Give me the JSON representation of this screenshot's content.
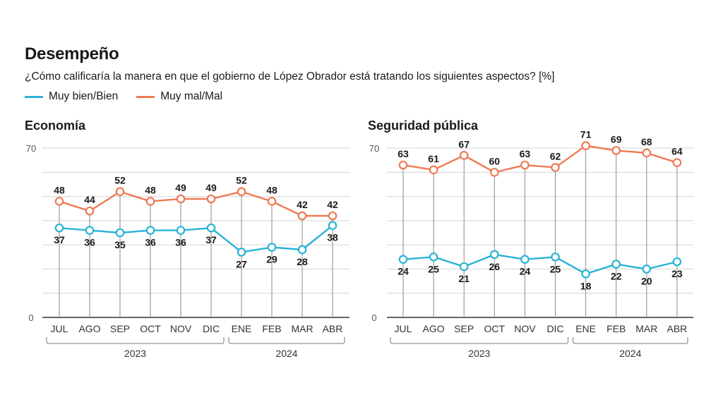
{
  "header": {
    "title": "Desempeño",
    "subtitle": "¿Cómo calificaría la manera en que el gobierno de López Obrador está tratando los siguientes aspectos? [%]"
  },
  "legend": [
    {
      "label": "Muy bien/Bien",
      "color": "#29b3d6"
    },
    {
      "label": "Muy mal/Mal",
      "color": "#ee7a55"
    }
  ],
  "chart_data": [
    {
      "type": "line",
      "title": "Economía",
      "categories": [
        "JUL",
        "AGO",
        "SEP",
        "OCT",
        "NOV",
        "DIC",
        "ENE",
        "FEB",
        "MAR",
        "ABR"
      ],
      "year_groups": [
        {
          "label": "2023",
          "count": 6
        },
        {
          "label": "2024",
          "count": 4
        }
      ],
      "ylim": [
        0,
        70
      ],
      "yticks": [
        "0",
        "70"
      ],
      "grid": true,
      "series": [
        {
          "name": "Muy bien/Bien",
          "color": "#29b3d6",
          "values": [
            37,
            36,
            35,
            36,
            36,
            37,
            27,
            29,
            28,
            38
          ]
        },
        {
          "name": "Muy mal/Mal",
          "color": "#ee7a55",
          "values": [
            48,
            44,
            52,
            48,
            49,
            49,
            52,
            48,
            42,
            42
          ]
        }
      ]
    },
    {
      "type": "line",
      "title": "Seguridad pública",
      "categories": [
        "JUL",
        "AGO",
        "SEP",
        "OCT",
        "NOV",
        "DIC",
        "ENE",
        "FEB",
        "MAR",
        "ABR"
      ],
      "year_groups": [
        {
          "label": "2023",
          "count": 6
        },
        {
          "label": "2024",
          "count": 4
        }
      ],
      "ylim": [
        0,
        70
      ],
      "yticks": [
        "0",
        "70"
      ],
      "grid": true,
      "series": [
        {
          "name": "Muy bien/Bien",
          "color": "#29b3d6",
          "values": [
            24,
            25,
            21,
            26,
            24,
            25,
            18,
            22,
            20,
            23
          ]
        },
        {
          "name": "Muy mal/Mal",
          "color": "#ee7a55",
          "values": [
            63,
            61,
            67,
            60,
            63,
            62,
            71,
            69,
            68,
            64
          ]
        }
      ]
    }
  ]
}
